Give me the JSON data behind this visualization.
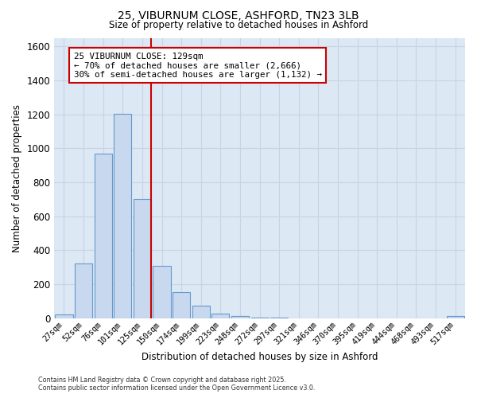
{
  "title": "25, VIBURNUM CLOSE, ASHFORD, TN23 3LB",
  "subtitle": "Size of property relative to detached houses in Ashford",
  "xlabel": "Distribution of detached houses by size in Ashford",
  "ylabel": "Number of detached properties",
  "categories": [
    "27sqm",
    "52sqm",
    "76sqm",
    "101sqm",
    "125sqm",
    "150sqm",
    "174sqm",
    "199sqm",
    "223sqm",
    "248sqm",
    "272sqm",
    "297sqm",
    "321sqm",
    "346sqm",
    "370sqm",
    "395sqm",
    "419sqm",
    "444sqm",
    "468sqm",
    "493sqm",
    "517sqm"
  ],
  "values": [
    22,
    320,
    970,
    1205,
    700,
    308,
    152,
    75,
    28,
    12,
    5,
    5,
    0,
    0,
    0,
    0,
    0,
    0,
    0,
    0,
    12
  ],
  "bar_color": "#c8d8ee",
  "bar_edge_color": "#6699cc",
  "vline_color": "#cc0000",
  "annotation_text_line1": "25 VIBURNUM CLOSE: 129sqm",
  "annotation_text_line2": "← 70% of detached houses are smaller (2,666)",
  "annotation_text_line3": "30% of semi-detached houses are larger (1,132) →",
  "annotation_box_color": "#cc0000",
  "annotation_bg": "#ffffff",
  "ylim": [
    0,
    1650
  ],
  "yticks": [
    0,
    200,
    400,
    600,
    800,
    1000,
    1200,
    1400,
    1600
  ],
  "grid_color": "#c8d4e4",
  "plot_bg_color": "#dce8f4",
  "fig_bg_color": "#ffffff",
  "footer_line1": "Contains HM Land Registry data © Crown copyright and database right 2025.",
  "footer_line2": "Contains public sector information licensed under the Open Government Licence v3.0."
}
